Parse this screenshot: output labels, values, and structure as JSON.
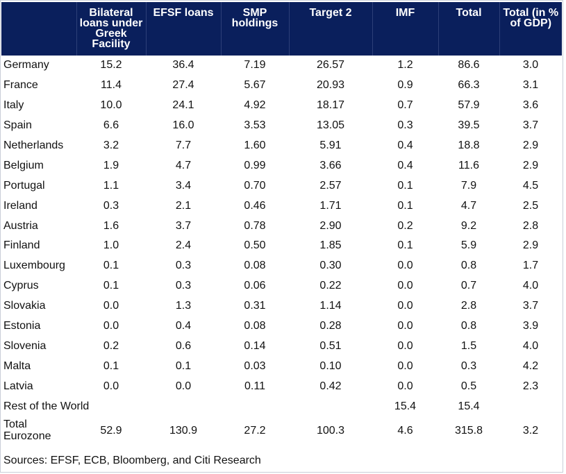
{
  "table": {
    "headers": [
      "",
      "Bilateral loans under Greek Facility",
      "EFSF loans",
      "SMP holdings",
      "Target 2",
      "IMF",
      "Total",
      "Total (in % of GDP)"
    ],
    "rows": [
      [
        "Germany",
        "15.2",
        "36.4",
        "7.19",
        "26.57",
        "1.2",
        "86.6",
        "3.0"
      ],
      [
        "France",
        "11.4",
        "27.4",
        "5.67",
        "20.93",
        "0.9",
        "66.3",
        "3.1"
      ],
      [
        "Italy",
        "10.0",
        "24.1",
        "4.92",
        "18.17",
        "0.7",
        "57.9",
        "3.6"
      ],
      [
        "Spain",
        "6.6",
        "16.0",
        "3.53",
        "13.05",
        "0.3",
        "39.5",
        "3.7"
      ],
      [
        "Netherlands",
        "3.2",
        "7.7",
        "1.60",
        "5.91",
        "0.4",
        "18.8",
        "2.9"
      ],
      [
        "Belgium",
        "1.9",
        "4.7",
        "0.99",
        "3.66",
        "0.4",
        "11.6",
        "2.9"
      ],
      [
        "Portugal",
        "1.1",
        "3.4",
        "0.70",
        "2.57",
        "0.1",
        "7.9",
        "4.5"
      ],
      [
        "Ireland",
        "0.3",
        "2.1",
        "0.46",
        "1.71",
        "0.1",
        "4.7",
        "2.5"
      ],
      [
        "Austria",
        "1.6",
        "3.7",
        "0.78",
        "2.90",
        "0.2",
        "9.2",
        "2.8"
      ],
      [
        "Finland",
        "1.0",
        "2.4",
        "0.50",
        "1.85",
        "0.1",
        "5.9",
        "2.9"
      ],
      [
        "Luxembourg",
        "0.1",
        "0.3",
        "0.08",
        "0.30",
        "0.0",
        "0.8",
        "1.7"
      ],
      [
        "Cyprus",
        "0.1",
        "0.3",
        "0.06",
        "0.22",
        "0.0",
        "0.7",
        "4.0"
      ],
      [
        "Slovakia",
        "0.0",
        "1.3",
        "0.31",
        "1.14",
        "0.0",
        "2.8",
        "3.7"
      ],
      [
        "Estonia",
        "0.0",
        "0.4",
        "0.08",
        "0.28",
        "0.0",
        "0.8",
        "3.9"
      ],
      [
        "Slovenia",
        "0.2",
        "0.6",
        "0.14",
        "0.51",
        "0.0",
        "1.5",
        "4.0"
      ],
      [
        "Malta",
        "0.1",
        "0.1",
        "0.03",
        "0.10",
        "0.0",
        "0.3",
        "4.2"
      ],
      [
        "Latvia",
        "0.0",
        "0.0",
        "0.11",
        "0.42",
        "0.0",
        "0.5",
        "2.3"
      ],
      [
        "Rest of the World",
        "",
        "",
        "",
        "",
        "15.4",
        "15.4",
        ""
      ]
    ],
    "total_row": [
      "Total Eurozone",
      "52.9",
      "130.9",
      "27.2",
      "100.3",
      "4.6",
      "315.8",
      "3.2"
    ]
  },
  "source_note": "Sources: EFSF, ECB, Bloomberg, and Citi Research",
  "colors": {
    "header_bg": "#0a1f5c",
    "header_text": "#ffffff"
  }
}
